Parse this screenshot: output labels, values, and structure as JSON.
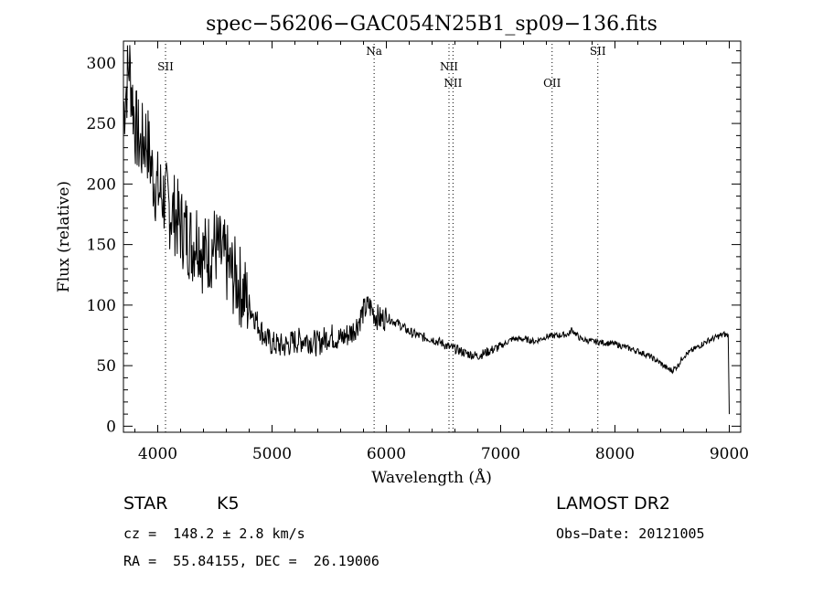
{
  "chart_data": {
    "type": "line",
    "title": "spec−56206−GAC054N25B1_sp09−136.fits",
    "xlabel": "Wavelength (Å)",
    "ylabel": "Flux (relative)",
    "xlim": [
      3700,
      9100
    ],
    "ylim": [
      -5,
      318
    ],
    "x_ticks": [
      4000,
      5000,
      6000,
      7000,
      8000,
      9000
    ],
    "y_ticks": [
      0,
      50,
      100,
      150,
      200,
      250,
      300
    ],
    "grid": false,
    "series": [
      {
        "x": [
          3700,
          3750,
          3800,
          3850,
          3900,
          3950,
          4000,
          4050,
          4100,
          4150,
          4200,
          4250,
          4300,
          4350,
          4400,
          4450,
          4500,
          4550,
          4600,
          4650,
          4700,
          4750,
          4800,
          4850,
          4900,
          4950,
          5000,
          5100,
          5200,
          5300,
          5400,
          5500,
          5600,
          5700,
          5750,
          5800,
          5850,
          5900,
          5950,
          6000,
          6100,
          6200,
          6300,
          6400,
          6500,
          6550,
          6600,
          6700,
          6800,
          6900,
          7000,
          7100,
          7200,
          7300,
          7400,
          7500,
          7600,
          7620,
          7700,
          7800,
          7900,
          8000,
          8100,
          8200,
          8300,
          8400,
          8450,
          8500,
          8550,
          8600,
          8700,
          8800,
          8900,
          8950,
          8990,
          9000
        ],
        "y": [
          260,
          300,
          250,
          230,
          240,
          210,
          195,
          190,
          180,
          175,
          165,
          160,
          150,
          160,
          140,
          145,
          150,
          140,
          135,
          125,
          120,
          110,
          100,
          90,
          80,
          72,
          68,
          66,
          70,
          72,
          68,
          75,
          72,
          78,
          85,
          95,
          100,
          92,
          88,
          90,
          85,
          78,
          74,
          72,
          68,
          65,
          64,
          60,
          58,
          62,
          66,
          72,
          72,
          70,
          74,
          75,
          76,
          80,
          72,
          70,
          69,
          68,
          65,
          62,
          58,
          52,
          48,
          46,
          50,
          58,
          64,
          70,
          74,
          76,
          75,
          10
        ]
      }
    ],
    "spectral_lines": [
      {
        "name": "SII",
        "wavelength": 4068
      },
      {
        "name": "Na",
        "wavelength": 5893
      },
      {
        "name": "NII",
        "wavelength": 6548
      },
      {
        "name": "NII",
        "wavelength": 6583
      },
      {
        "name": "OII",
        "wavelength": 7450
      },
      {
        "name": "SII",
        "wavelength": 7850
      }
    ]
  },
  "info": {
    "object_class": "STAR",
    "subclass": "K5",
    "survey": "LAMOST DR2",
    "redshift": "cz =  148.2 ± 2.8 km/s",
    "obs_date": "Obs−Date: 20121005",
    "coords": "RA =  55.84155, DEC =  26.19006"
  }
}
